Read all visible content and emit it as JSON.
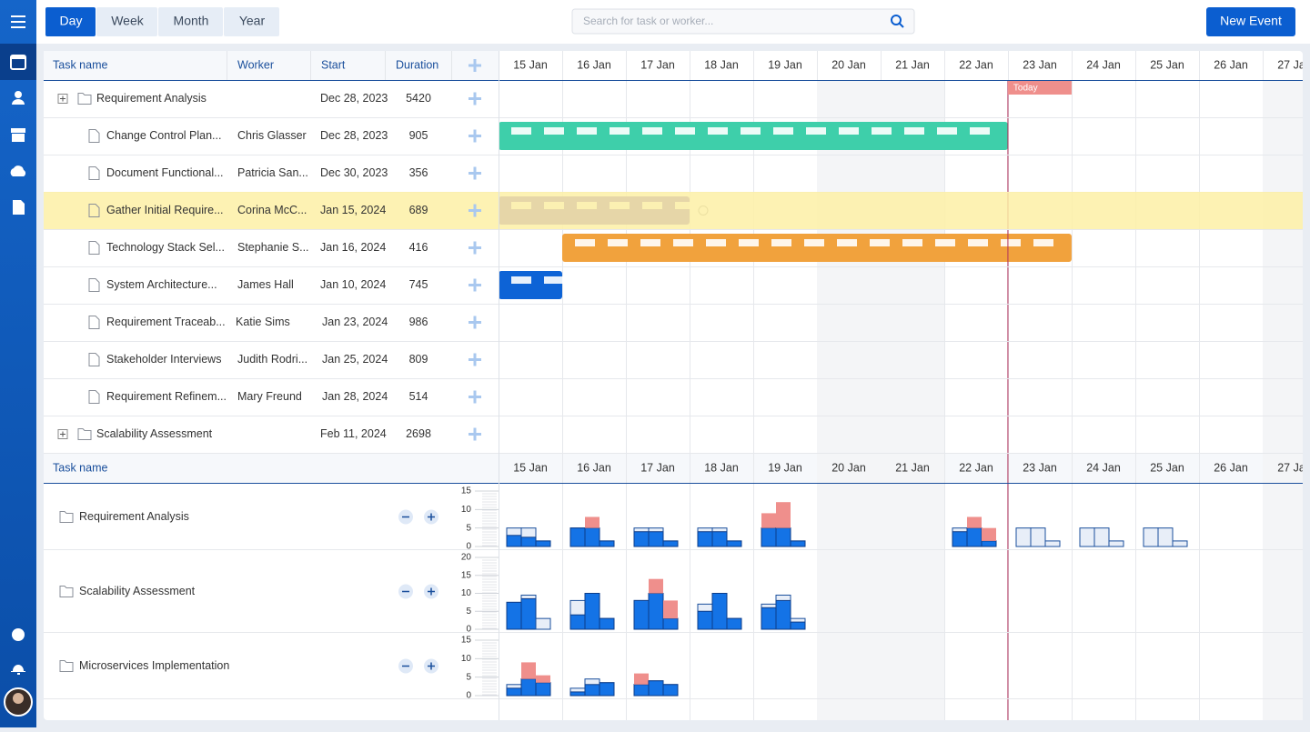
{
  "toolbar": {
    "tabs": [
      "Day",
      "Week",
      "Month",
      "Year"
    ],
    "search_placeholder": "Search for task or worker...",
    "new_event": "New Event"
  },
  "grid": {
    "columns": [
      "Task name",
      "Worker",
      "Start",
      "Duration"
    ],
    "rows": [
      {
        "task": "Requirement Analysis",
        "start": "Dec 28, 2023",
        "duration": "5420"
      },
      {
        "task": "Change Control Plan...",
        "worker": "Chris Glasser",
        "start": "Dec 28, 2023",
        "duration": "905",
        "bar": {
          "start": 15,
          "end": 23,
          "color": "#3ecfaa"
        }
      },
      {
        "task": "Document Functional...",
        "worker": "Patricia San...",
        "start": "Dec 30, 2023",
        "duration": "356"
      },
      {
        "task": "Gather Initial Require...",
        "worker": "Corina McC...",
        "start": "Jan 15, 2024",
        "duration": "689",
        "bar": {
          "start": 15,
          "end": 18,
          "color": "#6546b6"
        }
      },
      {
        "task": "Technology Stack Sel...",
        "worker": "Stephanie S...",
        "start": "Jan 16, 2024",
        "duration": "416",
        "bar": {
          "start": 16,
          "end": 24,
          "color": "#f1a23d"
        }
      },
      {
        "task": "System Architecture...",
        "worker": "James Hall",
        "start": "Jan 10, 2024",
        "duration": "745",
        "bar": {
          "start": 15,
          "end": 16,
          "color": "#0d63d6"
        }
      },
      {
        "task": "Requirement Traceab...",
        "worker": "Katie Sims",
        "start": "Jan 23, 2024",
        "duration": "986"
      },
      {
        "task": "Stakeholder Interviews",
        "worker": "Judith Rodri...",
        "start": "Jan 25, 2024",
        "duration": "809"
      },
      {
        "task": "Requirement Refinem...",
        "worker": "Mary Freund",
        "start": "Jan 28, 2024",
        "duration": "514"
      },
      {
        "task": "Scalability Assessment",
        "start": "Feb 11, 2024",
        "duration": "2698"
      }
    ]
  },
  "timeline": {
    "days": [
      "15 Jan",
      "16 Jan",
      "17 Jan",
      "18 Jan",
      "19 Jan",
      "20 Jan",
      "21 Jan",
      "22 Jan",
      "23 Jan",
      "24 Jan",
      "25 Jan",
      "26 Jan",
      "27 Jan"
    ],
    "xlim": [
      15,
      27.63
    ],
    "today": 23,
    "today_label": "Today"
  },
  "resource": {
    "header": "Task name",
    "rows": [
      {
        "name": "Requirement Analysis",
        "ylim": [
          0,
          15
        ],
        "yticks": [
          0,
          5,
          10,
          15
        ],
        "days": [
          [
            [
              3,
              5
            ],
            [
              2.5,
              5
            ],
            [
              1.5,
              1.5
            ]
          ],
          [
            [
              5,
              5
            ],
            [
              8,
              5
            ],
            [
              1.5,
              1.5
            ]
          ],
          [
            [
              4,
              5
            ],
            [
              4,
              5
            ],
            [
              1.5,
              1.5
            ]
          ],
          [
            [
              4,
              5
            ],
            [
              4,
              5
            ],
            [
              1.5,
              1.5
            ]
          ],
          [
            [
              9,
              5
            ],
            [
              12,
              5
            ],
            [
              1.5,
              1.5
            ]
          ],
          null,
          null,
          [
            [
              4,
              5
            ],
            [
              8,
              5
            ],
            [
              5,
              1.5
            ]
          ],
          [
            [
              0,
              5
            ],
            [
              0,
              5
            ],
            [
              0,
              1.5
            ]
          ],
          [
            [
              0,
              5
            ],
            [
              0,
              5
            ],
            [
              0,
              1.5
            ]
          ],
          [
            [
              0,
              5
            ],
            [
              0,
              5
            ],
            [
              0,
              1.5
            ]
          ],
          null,
          null
        ]
      },
      {
        "name": "Scalability Assessment",
        "ylim": [
          0,
          20
        ],
        "yticks": [
          0,
          5,
          10,
          15,
          20
        ],
        "days": [
          [
            [
              7.5,
              7.5
            ],
            [
              8.5,
              9.5
            ],
            [
              0,
              3
            ]
          ],
          [
            [
              4,
              8
            ],
            [
              10,
              10
            ],
            [
              3,
              3
            ]
          ],
          [
            [
              8,
              8
            ],
            [
              14,
              10
            ],
            [
              8,
              3
            ]
          ],
          [
            [
              5,
              7
            ],
            [
              10,
              10
            ],
            [
              3,
              3
            ]
          ],
          [
            [
              6,
              7
            ],
            [
              8,
              9.5
            ],
            [
              2,
              3
            ]
          ],
          null,
          null,
          null,
          null,
          null,
          null,
          null,
          null
        ]
      },
      {
        "name": "Microservices Implementation",
        "ylim": [
          0,
          15
        ],
        "yticks": [
          0,
          5,
          10,
          15
        ],
        "days": [
          [
            [
              2,
              3
            ],
            [
              9,
              4.5
            ],
            [
              5.5,
              3.5
            ]
          ],
          [
            [
              1,
              2
            ],
            [
              3,
              4.5
            ],
            [
              3.5,
              3.5
            ]
          ],
          [
            [
              6,
              3
            ],
            [
              4,
              4
            ],
            [
              3,
              3
            ]
          ],
          null,
          null,
          null,
          null,
          null,
          null,
          null,
          null,
          null,
          null
        ]
      }
    ]
  }
}
